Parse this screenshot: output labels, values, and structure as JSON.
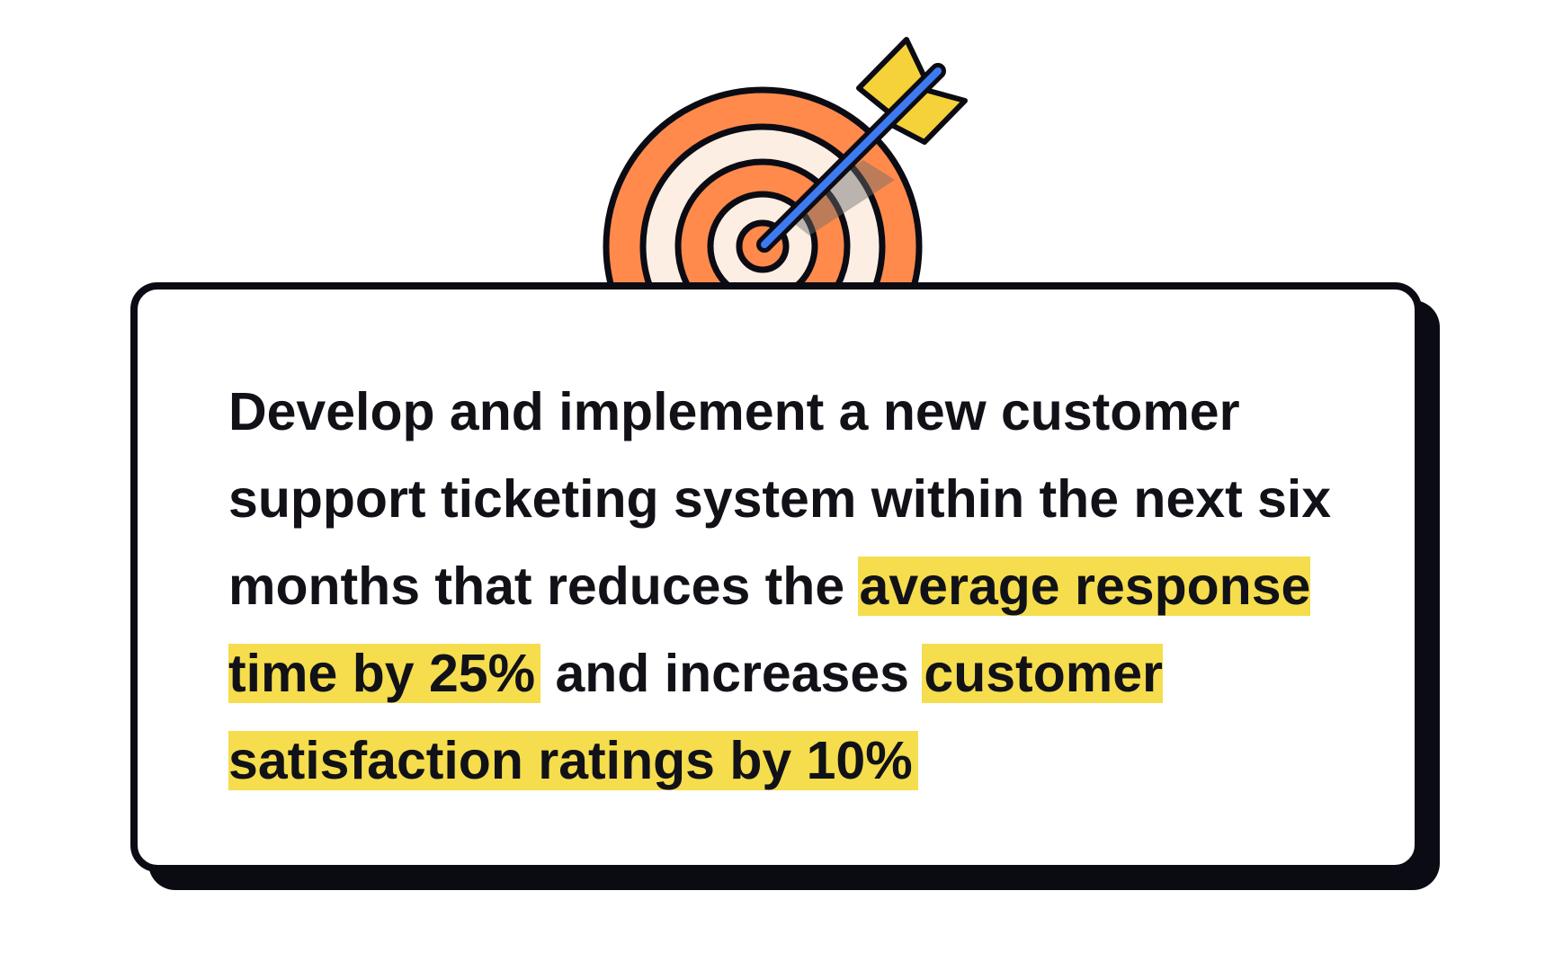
{
  "goal": {
    "text_before": "Develop and implement a new customer support ticketing system within the next six months that reduces the ",
    "highlight_1": "average response time by 25%",
    "text_between": " and increases ",
    "highlight_2": "customer satisfaction ratings by 10%"
  },
  "colors": {
    "highlight": "#f5dd4d",
    "outline": "#0b0b14",
    "target_orange": "#ff8a4c",
    "target_cream": "#fdeee4",
    "arrow_blue": "#3d7bf2",
    "fletching_yellow": "#f5d23a"
  },
  "icons": {
    "illustration": "target-with-arrow-icon"
  }
}
